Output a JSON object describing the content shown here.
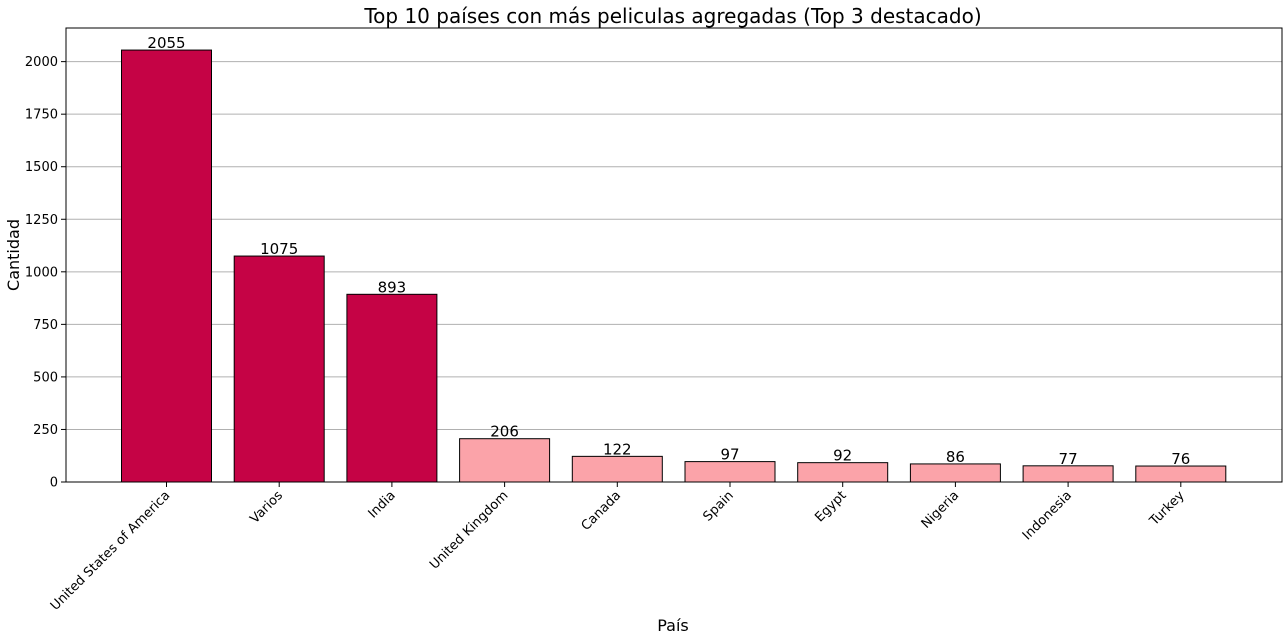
{
  "chart_data": {
    "type": "bar",
    "title": "Top 10 países con más peliculas agregadas (Top 3 destacado)",
    "xlabel": "País",
    "ylabel": "Cantidad",
    "categories": [
      "United States of America",
      "Varios",
      "India",
      "United Kingdom",
      "Canada",
      "Spain",
      "Egypt",
      "Nigeria",
      "Indonesia",
      "Turkey"
    ],
    "values": [
      2055,
      1075,
      893,
      206,
      122,
      97,
      92,
      86,
      77,
      76
    ],
    "highlight_top_n": 3,
    "colors": {
      "highlight": "#c50345",
      "normal": "#fba3a9",
      "bar_edge": "#000000",
      "grid": "#b0b0b0"
    },
    "ylim": [
      0,
      2160
    ],
    "yticks": [
      0,
      250,
      500,
      750,
      1000,
      1250,
      1500,
      1750,
      2000
    ],
    "grid": "y-axis only",
    "legend": "none",
    "xtick_rotation_deg": 45
  }
}
